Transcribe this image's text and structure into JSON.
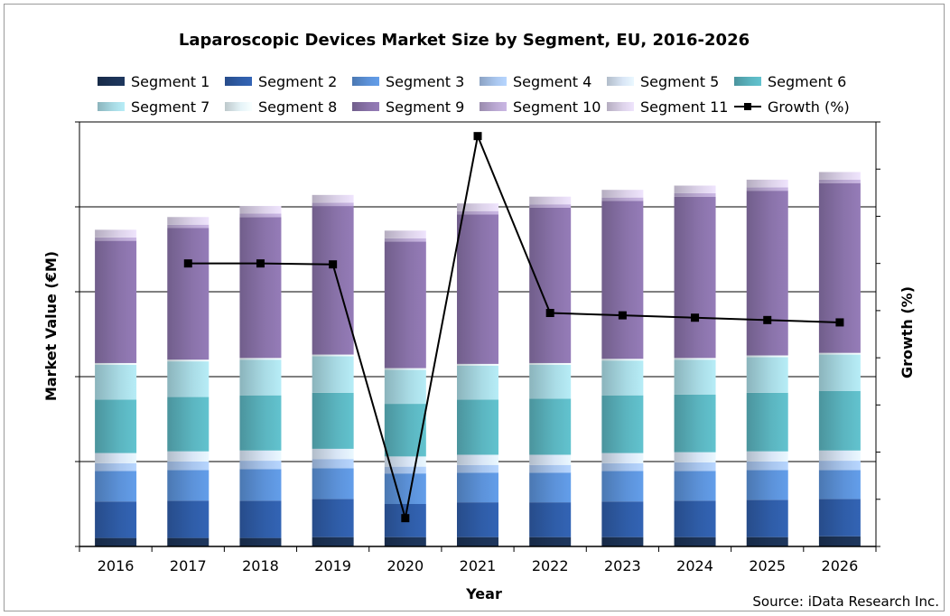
{
  "chart_data": {
    "type": "bar",
    "stacked": true,
    "title": "Laparoscopic Devices Market Size by Segment, EU, 2016-2026",
    "xlabel": "Year",
    "ylabel": "Market Value (€M)",
    "y2label": "Growth (%)",
    "source": "Source: iData Research Inc.",
    "ylim": [
      0,
      5
    ],
    "y2lim": [
      0,
      9
    ],
    "grid": true,
    "legend_position": "top",
    "categories": [
      "2016",
      "2017",
      "2018",
      "2019",
      "2020",
      "2021",
      "2022",
      "2023",
      "2024",
      "2025",
      "2026"
    ],
    "series": [
      {
        "name": "Segment 1",
        "color": "#1c3357",
        "values": [
          0.1,
          0.1,
          0.1,
          0.11,
          0.11,
          0.11,
          0.11,
          0.11,
          0.11,
          0.11,
          0.12
        ]
      },
      {
        "name": "Segment 2",
        "color": "#2f5da8",
        "values": [
          0.43,
          0.44,
          0.44,
          0.45,
          0.39,
          0.41,
          0.41,
          0.42,
          0.43,
          0.44,
          0.44
        ]
      },
      {
        "name": "Segment 3",
        "color": "#5c92d9",
        "values": [
          0.36,
          0.36,
          0.37,
          0.36,
          0.36,
          0.35,
          0.35,
          0.36,
          0.35,
          0.35,
          0.34
        ]
      },
      {
        "name": "Segment 4",
        "color": "#a9c6ee",
        "values": [
          0.09,
          0.1,
          0.1,
          0.11,
          0.08,
          0.09,
          0.09,
          0.09,
          0.1,
          0.1,
          0.11
        ]
      },
      {
        "name": "Segment 5",
        "color": "#d9e6f6",
        "values": [
          0.12,
          0.12,
          0.12,
          0.12,
          0.12,
          0.12,
          0.12,
          0.12,
          0.12,
          0.12,
          0.12
        ]
      },
      {
        "name": "Segment 6",
        "color": "#5bb5c0",
        "values": [
          0.63,
          0.64,
          0.65,
          0.66,
          0.62,
          0.65,
          0.66,
          0.68,
          0.68,
          0.69,
          0.7
        ]
      },
      {
        "name": "Segment 7",
        "color": "#a9dbe5",
        "values": [
          0.41,
          0.42,
          0.42,
          0.43,
          0.4,
          0.4,
          0.4,
          0.41,
          0.41,
          0.42,
          0.43
        ]
      },
      {
        "name": "Segment 8",
        "color": "#e6f4f8",
        "values": [
          0.02,
          0.02,
          0.02,
          0.02,
          0.02,
          0.02,
          0.02,
          0.02,
          0.02,
          0.02,
          0.02
        ]
      },
      {
        "name": "Segment 9",
        "color": "#8a73aa",
        "values": [
          1.44,
          1.55,
          1.66,
          1.75,
          1.49,
          1.76,
          1.83,
          1.86,
          1.9,
          1.94,
          2.0
        ]
      },
      {
        "name": "Segment 10",
        "color": "#bba9d3",
        "values": [
          0.04,
          0.04,
          0.04,
          0.04,
          0.04,
          0.04,
          0.04,
          0.04,
          0.04,
          0.04,
          0.04
        ]
      },
      {
        "name": "Segment 11",
        "color": "#ddd3ea",
        "values": [
          0.09,
          0.09,
          0.09,
          0.09,
          0.09,
          0.09,
          0.09,
          0.09,
          0.09,
          0.09,
          0.09
        ]
      }
    ],
    "line_series": {
      "name": "Growth (%)",
      "axis": "right",
      "color": "#000000",
      "values": [
        null,
        6.0,
        6.0,
        5.98,
        0.6,
        8.7,
        4.95,
        4.9,
        4.85,
        4.8,
        4.75
      ]
    }
  }
}
